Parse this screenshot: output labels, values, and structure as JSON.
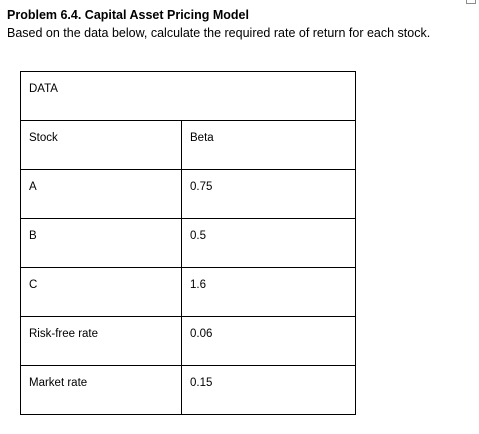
{
  "problem": {
    "title": "Problem 6.4. Capital Asset Pricing Model",
    "instruction": "Based on the data below, calculate the required rate of return for each stock."
  },
  "table": {
    "header": "DATA",
    "columns": [
      "Stock",
      "Beta"
    ],
    "rows": [
      {
        "label": "A",
        "value": "0.75"
      },
      {
        "label": "B",
        "value": "0.5"
      },
      {
        "label": "C",
        "value": "1.6"
      },
      {
        "label": "Risk-free rate",
        "value": "0.06"
      },
      {
        "label": "Market rate",
        "value": "0.15"
      }
    ]
  }
}
